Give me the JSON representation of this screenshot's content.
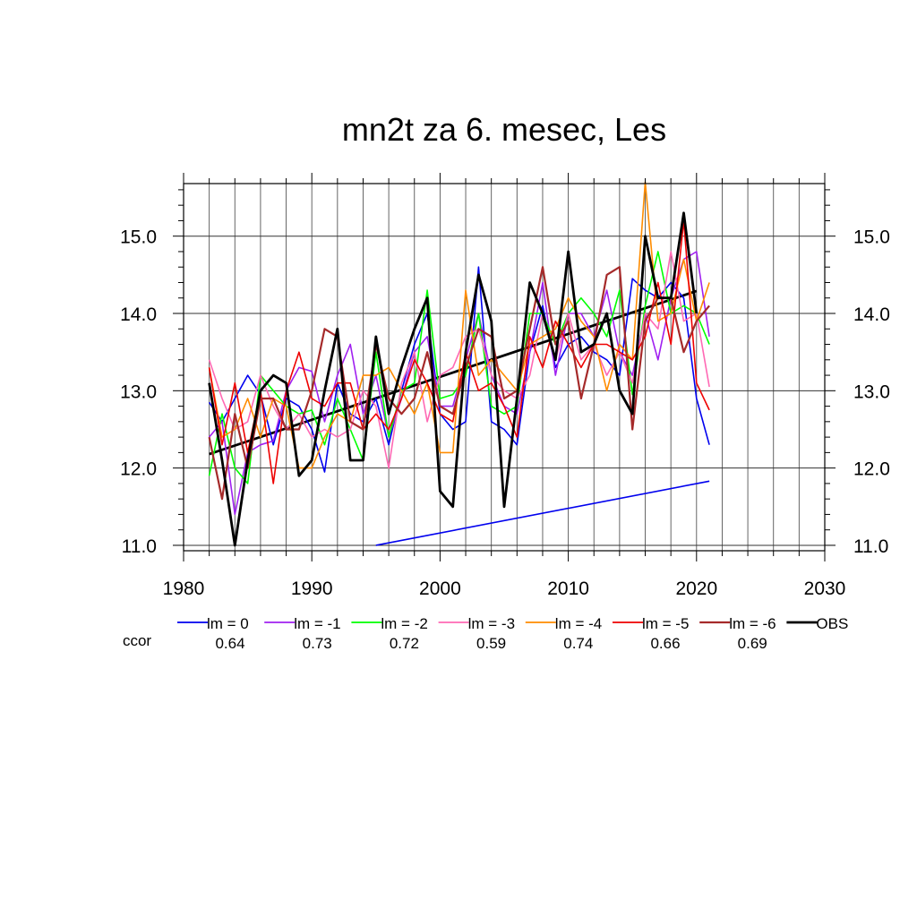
{
  "chart_data": {
    "type": "line",
    "title": "mn2t za 6. mesec, Les",
    "xlabel": "",
    "ylabel": "",
    "xlim": [
      1980,
      2030
    ],
    "ylim": [
      10.93,
      15.68
    ],
    "x_ticks": [
      "1980",
      "1990",
      "2000",
      "2010",
      "2020",
      "2030"
    ],
    "y_ticks": [
      "11.0",
      "12.0",
      "13.0",
      "14.0",
      "15.0"
    ],
    "grid": true,
    "legend_position": "bottom",
    "ccor_label": "ccor",
    "x": [
      1982,
      1983,
      1984,
      1985,
      1986,
      1987,
      1988,
      1989,
      1990,
      1991,
      1992,
      1993,
      1994,
      1995,
      1996,
      1997,
      1998,
      1999,
      2000,
      2001,
      2002,
      2003,
      2004,
      2005,
      2006,
      2007,
      2008,
      2009,
      2010,
      2011,
      2012,
      2013,
      2014,
      2015,
      2016,
      2017,
      2018,
      2019,
      2020,
      2021
    ],
    "series": [
      {
        "name": "lm = 0",
        "ccor": "0.64",
        "color": "#0000ee",
        "width": 1.6,
        "values": [
          12.85,
          12.6,
          12.9,
          13.2,
          12.95,
          12.3,
          12.9,
          12.8,
          12.5,
          11.95,
          13.1,
          12.7,
          12.6,
          12.9,
          12.3,
          13.0,
          13.6,
          14.0,
          12.7,
          12.5,
          12.6,
          14.6,
          12.6,
          12.5,
          12.3,
          13.5,
          14.1,
          13.3,
          13.6,
          13.7,
          13.5,
          13.4,
          13.2,
          14.45,
          14.3,
          14.2,
          14.4,
          14.2,
          12.9,
          12.3
        ]
      },
      {
        "name": "lm = -1",
        "ccor": "0.73",
        "color": "#a020f0",
        "width": 1.6,
        "values": [
          12.4,
          12.6,
          11.4,
          12.2,
          12.3,
          12.35,
          13.0,
          13.3,
          13.25,
          12.6,
          13.2,
          13.6,
          12.7,
          13.2,
          12.4,
          12.9,
          13.5,
          13.7,
          12.8,
          12.8,
          13.4,
          14.0,
          13.2,
          12.8,
          12.7,
          13.5,
          14.4,
          13.2,
          14.0,
          14.0,
          13.7,
          14.3,
          13.5,
          13.2,
          14.0,
          13.4,
          14.2,
          14.7,
          14.8,
          13.7
        ]
      },
      {
        "name": "lm = -2",
        "ccor": "0.72",
        "color": "#00ff00",
        "width": 1.6,
        "values": [
          11.9,
          12.7,
          12.0,
          11.8,
          13.2,
          13.0,
          12.8,
          12.7,
          12.75,
          12.3,
          12.9,
          12.5,
          12.1,
          13.5,
          12.4,
          13.0,
          13.1,
          14.3,
          12.9,
          12.95,
          13.2,
          14.0,
          12.8,
          12.7,
          12.8,
          14.0,
          14.0,
          13.6,
          14.0,
          14.2,
          14.0,
          13.7,
          14.3,
          12.95,
          14.1,
          14.8,
          14.0,
          14.1,
          14.0,
          13.6
        ]
      },
      {
        "name": "lm = -3",
        "ccor": "0.59",
        "color": "#ff69b4",
        "width": 1.6,
        "values": [
          13.4,
          12.9,
          12.5,
          12.6,
          13.2,
          12.8,
          12.5,
          12.7,
          12.4,
          12.5,
          12.4,
          12.5,
          13.0,
          12.8,
          12.0,
          13.1,
          13.5,
          12.6,
          13.2,
          13.3,
          13.7,
          13.8,
          13.2,
          13.0,
          12.9,
          13.2,
          14.0,
          13.4,
          14.0,
          13.4,
          13.6,
          13.2,
          13.5,
          13.1,
          14.0,
          13.8,
          14.8,
          13.9,
          14.0,
          13.05
        ]
      },
      {
        "name": "lm = -4",
        "ccor": "0.74",
        "color": "#ff8c00",
        "width": 1.6,
        "values": [
          13.3,
          12.4,
          12.5,
          12.9,
          12.4,
          12.9,
          12.8,
          12.0,
          12.0,
          12.4,
          12.7,
          12.6,
          13.2,
          13.2,
          13.3,
          13.0,
          12.7,
          13.1,
          12.2,
          12.2,
          14.3,
          13.2,
          13.4,
          13.2,
          13.0,
          13.6,
          13.7,
          13.8,
          14.2,
          13.9,
          13.7,
          13.0,
          13.6,
          13.4,
          15.7,
          13.9,
          14.0,
          14.7,
          13.9,
          14.4
        ]
      },
      {
        "name": "lm = -5",
        "ccor": "0.66",
        "color": "#ee0000",
        "width": 1.6,
        "values": [
          13.3,
          12.3,
          13.1,
          12.2,
          13.0,
          11.8,
          13.0,
          13.5,
          12.9,
          12.8,
          13.1,
          13.1,
          12.5,
          12.7,
          12.5,
          12.9,
          13.4,
          13.1,
          12.7,
          12.6,
          13.5,
          13.0,
          13.1,
          12.8,
          12.4,
          13.7,
          13.3,
          13.9,
          13.6,
          13.3,
          13.6,
          13.6,
          13.5,
          13.4,
          13.7,
          14.4,
          13.6,
          15.2,
          13.1,
          12.75
        ]
      },
      {
        "name": "lm = -6",
        "ccor": "0.69",
        "color": "#a52a2a",
        "width": 2.2,
        "values": [
          12.4,
          11.6,
          12.7,
          12.0,
          12.9,
          12.9,
          12.5,
          12.5,
          13.0,
          13.8,
          13.7,
          12.6,
          12.5,
          13.6,
          12.9,
          12.7,
          12.9,
          13.5,
          12.8,
          12.7,
          13.3,
          13.8,
          13.7,
          12.9,
          13.0,
          13.8,
          14.6,
          13.6,
          13.9,
          12.9,
          13.6,
          14.5,
          14.6,
          12.5,
          13.9,
          14.2,
          14.2,
          13.5,
          13.9,
          14.1
        ]
      },
      {
        "name": "OBS",
        "ccor": "",
        "color": "#000000",
        "width": 2.8,
        "values": [
          13.1,
          12.1,
          11.0,
          12.1,
          13.0,
          13.2,
          13.1,
          11.9,
          12.1,
          13.0,
          13.8,
          12.1,
          12.1,
          13.7,
          12.7,
          13.3,
          13.8,
          14.2,
          11.7,
          11.5,
          13.5,
          14.5,
          13.9,
          11.5,
          12.9,
          14.4,
          14.0,
          13.4,
          14.8,
          13.5,
          13.6,
          14.0,
          13.0,
          12.7,
          15.0,
          14.2,
          14.2,
          15.3,
          14.0,
          null
        ]
      }
    ],
    "trend_lines": [
      {
        "name": "OBS trend",
        "color": "#000000",
        "width": 2.8,
        "x": [
          1982,
          2020
        ],
        "values": [
          12.18,
          14.29
        ]
      },
      {
        "name": "lm = 0 trend",
        "color": "#0000ee",
        "width": 1.6,
        "x": [
          1995,
          2021
        ],
        "values": [
          11.0,
          11.83
        ]
      }
    ]
  }
}
